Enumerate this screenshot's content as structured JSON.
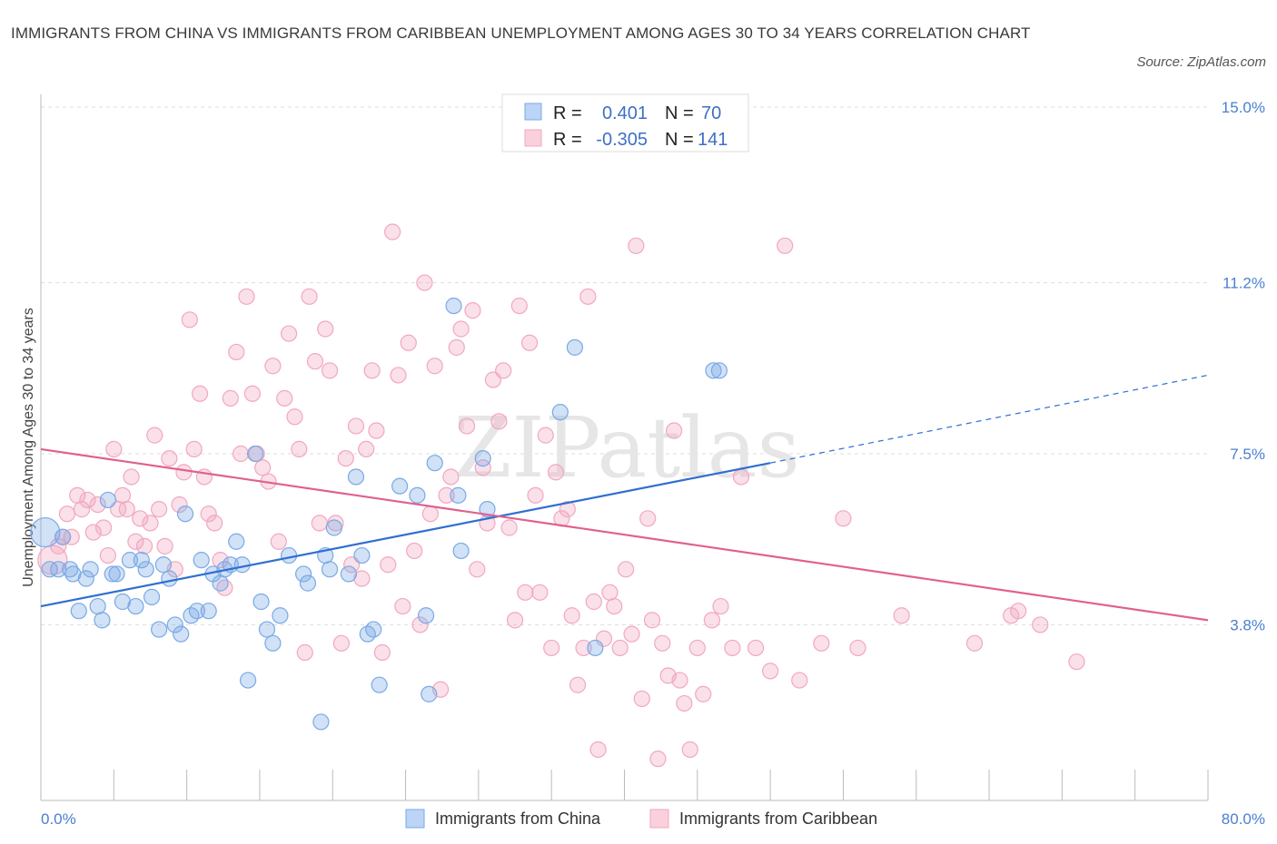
{
  "title": "IMMIGRANTS FROM CHINA VS IMMIGRANTS FROM CARIBBEAN UNEMPLOYMENT AMONG AGES 30 TO 34 YEARS CORRELATION CHART",
  "source": "Source: ZipAtlas.com",
  "watermark": "ZIPatlas",
  "colors": {
    "china": "#7aa9e6",
    "china_line": "#2f6fd0",
    "caribbean": "#f2a7c0",
    "caribbean_line": "#e0608f",
    "axis_text": "#4a7fd0"
  },
  "legend": {
    "r_label": "R =",
    "n_label": "N =",
    "china": {
      "r": "0.401",
      "n": "70"
    },
    "caribbean": {
      "r": "-0.305",
      "n": "141"
    }
  },
  "chart_data": {
    "type": "scatter",
    "title": "IMMIGRANTS FROM CHINA VS IMMIGRANTS FROM CARIBBEAN UNEMPLOYMENT AMONG AGES 30 TO 34 YEARS CORRELATION CHART",
    "xlabel": "",
    "ylabel": "Unemployment Among Ages 30 to 34 years",
    "xlim": [
      0,
      80
    ],
    "ylim": [
      0,
      15
    ],
    "x_tick_labels": [
      "0.0%",
      "80.0%"
    ],
    "y_tick_values": [
      3.8,
      7.5,
      11.2,
      15.0
    ],
    "y_tick_labels": [
      "3.8%",
      "7.5%",
      "11.2%",
      "15.0%"
    ],
    "series": [
      {
        "name": "Immigrants from China",
        "r": 0.401,
        "n": 70,
        "trend": {
          "x0": 0,
          "y0": 4.2,
          "x1": 50,
          "y1": 7.3,
          "dash_to_x": 80,
          "dash_to_y": 9.2
        },
        "points": [
          [
            0.3,
            5.8
          ],
          [
            0.6,
            5.0
          ],
          [
            1.2,
            5.0
          ],
          [
            1.5,
            5.7
          ],
          [
            2.0,
            5.0
          ],
          [
            2.2,
            4.9
          ],
          [
            2.6,
            4.1
          ],
          [
            3.1,
            4.8
          ],
          [
            3.4,
            5.0
          ],
          [
            3.9,
            4.2
          ],
          [
            4.2,
            3.9
          ],
          [
            4.6,
            6.5
          ],
          [
            4.9,
            4.9
          ],
          [
            5.2,
            4.9
          ],
          [
            5.6,
            4.3
          ],
          [
            6.1,
            5.2
          ],
          [
            6.5,
            4.2
          ],
          [
            6.9,
            5.2
          ],
          [
            7.2,
            5.0
          ],
          [
            7.6,
            4.4
          ],
          [
            8.1,
            3.7
          ],
          [
            8.4,
            5.1
          ],
          [
            8.8,
            4.8
          ],
          [
            9.2,
            3.8
          ],
          [
            9.6,
            3.6
          ],
          [
            9.9,
            6.2
          ],
          [
            10.3,
            4.0
          ],
          [
            10.7,
            4.1
          ],
          [
            11.0,
            5.2
          ],
          [
            11.5,
            4.1
          ],
          [
            11.8,
            4.9
          ],
          [
            12.3,
            4.7
          ],
          [
            12.6,
            5.0
          ],
          [
            13.0,
            5.1
          ],
          [
            13.4,
            5.6
          ],
          [
            13.8,
            5.1
          ],
          [
            14.2,
            2.6
          ],
          [
            14.7,
            7.5
          ],
          [
            15.1,
            4.3
          ],
          [
            15.5,
            3.7
          ],
          [
            15.9,
            3.4
          ],
          [
            16.4,
            4.0
          ],
          [
            17.0,
            5.3
          ],
          [
            18.0,
            4.9
          ],
          [
            18.3,
            4.7
          ],
          [
            19.2,
            1.7
          ],
          [
            19.5,
            5.3
          ],
          [
            19.8,
            5.0
          ],
          [
            20.1,
            5.9
          ],
          [
            21.1,
            4.9
          ],
          [
            21.6,
            7.0
          ],
          [
            22.0,
            5.3
          ],
          [
            22.4,
            3.6
          ],
          [
            22.8,
            3.7
          ],
          [
            23.2,
            2.5
          ],
          [
            24.6,
            6.8
          ],
          [
            25.8,
            6.6
          ],
          [
            26.4,
            4.0
          ],
          [
            26.6,
            2.3
          ],
          [
            27.0,
            7.3
          ],
          [
            28.3,
            10.7
          ],
          [
            28.6,
            6.6
          ],
          [
            28.8,
            5.4
          ],
          [
            30.3,
            7.4
          ],
          [
            30.6,
            6.3
          ],
          [
            35.6,
            8.4
          ],
          [
            36.6,
            9.8
          ],
          [
            38.0,
            3.3
          ],
          [
            46.1,
            9.3
          ],
          [
            46.5,
            9.3
          ]
        ]
      },
      {
        "name": "Immigrants from Caribbean",
        "r": -0.305,
        "n": 141,
        "trend": {
          "x0": 0,
          "y0": 7.6,
          "x1": 80,
          "y1": 3.9
        },
        "points": [
          [
            0.8,
            5.2
          ],
          [
            1.2,
            5.5
          ],
          [
            1.5,
            5.7
          ],
          [
            1.8,
            6.2
          ],
          [
            2.1,
            5.7
          ],
          [
            2.5,
            6.6
          ],
          [
            2.8,
            6.3
          ],
          [
            3.2,
            6.5
          ],
          [
            3.6,
            5.8
          ],
          [
            3.9,
            6.4
          ],
          [
            4.3,
            5.9
          ],
          [
            4.6,
            5.3
          ],
          [
            5.0,
            7.6
          ],
          [
            5.3,
            6.3
          ],
          [
            5.6,
            6.6
          ],
          [
            5.9,
            6.3
          ],
          [
            6.2,
            7.0
          ],
          [
            6.5,
            5.6
          ],
          [
            6.8,
            6.1
          ],
          [
            7.1,
            5.5
          ],
          [
            7.5,
            6.0
          ],
          [
            7.8,
            7.9
          ],
          [
            8.1,
            6.3
          ],
          [
            8.5,
            5.5
          ],
          [
            8.8,
            7.4
          ],
          [
            9.2,
            5.0
          ],
          [
            9.5,
            6.4
          ],
          [
            9.8,
            7.1
          ],
          [
            10.2,
            10.4
          ],
          [
            10.5,
            7.6
          ],
          [
            10.9,
            8.8
          ],
          [
            11.2,
            7.0
          ],
          [
            11.5,
            6.2
          ],
          [
            11.9,
            6.0
          ],
          [
            12.3,
            5.2
          ],
          [
            12.6,
            4.6
          ],
          [
            13.0,
            8.7
          ],
          [
            13.4,
            9.7
          ],
          [
            13.7,
            7.5
          ],
          [
            14.1,
            10.9
          ],
          [
            14.5,
            8.8
          ],
          [
            14.8,
            7.5
          ],
          [
            15.2,
            7.2
          ],
          [
            15.6,
            6.9
          ],
          [
            15.9,
            9.4
          ],
          [
            16.3,
            5.6
          ],
          [
            16.7,
            8.7
          ],
          [
            17.0,
            10.1
          ],
          [
            17.4,
            8.3
          ],
          [
            17.7,
            7.6
          ],
          [
            18.1,
            3.2
          ],
          [
            18.4,
            10.9
          ],
          [
            18.8,
            9.5
          ],
          [
            19.1,
            6.0
          ],
          [
            19.5,
            10.2
          ],
          [
            19.8,
            9.3
          ],
          [
            20.2,
            6.0
          ],
          [
            20.6,
            3.4
          ],
          [
            20.9,
            7.4
          ],
          [
            21.3,
            5.1
          ],
          [
            21.6,
            8.1
          ],
          [
            22.0,
            4.8
          ],
          [
            22.3,
            7.6
          ],
          [
            22.7,
            9.3
          ],
          [
            23.0,
            8.0
          ],
          [
            23.4,
            3.2
          ],
          [
            23.8,
            5.1
          ],
          [
            24.1,
            12.3
          ],
          [
            24.5,
            9.2
          ],
          [
            24.8,
            4.2
          ],
          [
            25.2,
            9.9
          ],
          [
            25.6,
            5.4
          ],
          [
            26.0,
            3.8
          ],
          [
            26.3,
            11.2
          ],
          [
            26.7,
            6.2
          ],
          [
            27.0,
            9.4
          ],
          [
            27.4,
            2.4
          ],
          [
            27.8,
            6.6
          ],
          [
            28.1,
            7.0
          ],
          [
            28.5,
            9.8
          ],
          [
            28.8,
            10.2
          ],
          [
            29.2,
            8.1
          ],
          [
            29.6,
            10.6
          ],
          [
            29.9,
            5.0
          ],
          [
            30.3,
            7.2
          ],
          [
            30.6,
            6.0
          ],
          [
            31.0,
            9.1
          ],
          [
            31.4,
            8.2
          ],
          [
            31.7,
            9.3
          ],
          [
            32.1,
            5.9
          ],
          [
            32.5,
            3.9
          ],
          [
            32.8,
            10.7
          ],
          [
            33.2,
            4.5
          ],
          [
            33.5,
            9.9
          ],
          [
            33.9,
            6.6
          ],
          [
            34.2,
            4.5
          ],
          [
            34.6,
            7.9
          ],
          [
            35.0,
            3.3
          ],
          [
            35.3,
            7.1
          ],
          [
            35.7,
            6.1
          ],
          [
            36.1,
            6.3
          ],
          [
            36.4,
            4.0
          ],
          [
            36.8,
            2.5
          ],
          [
            37.2,
            3.3
          ],
          [
            37.5,
            10.9
          ],
          [
            37.9,
            4.3
          ],
          [
            38.2,
            1.1
          ],
          [
            38.6,
            3.5
          ],
          [
            39.0,
            4.5
          ],
          [
            39.3,
            4.2
          ],
          [
            39.7,
            3.3
          ],
          [
            40.1,
            5.0
          ],
          [
            40.5,
            3.6
          ],
          [
            40.8,
            12.0
          ],
          [
            41.2,
            2.2
          ],
          [
            41.6,
            6.1
          ],
          [
            41.9,
            3.9
          ],
          [
            42.3,
            0.9
          ],
          [
            42.6,
            3.4
          ],
          [
            43.0,
            2.7
          ],
          [
            43.4,
            8.0
          ],
          [
            43.8,
            2.6
          ],
          [
            44.1,
            2.1
          ],
          [
            44.5,
            1.1
          ],
          [
            45.0,
            3.3
          ],
          [
            45.4,
            2.3
          ],
          [
            46.0,
            3.9
          ],
          [
            46.6,
            4.2
          ],
          [
            47.4,
            3.3
          ],
          [
            48.0,
            7.0
          ],
          [
            49.0,
            3.3
          ],
          [
            50.0,
            2.8
          ],
          [
            51.0,
            12.0
          ],
          [
            52.0,
            2.6
          ],
          [
            53.5,
            3.4
          ],
          [
            55.0,
            6.1
          ],
          [
            56.0,
            3.3
          ],
          [
            59.0,
            4.0
          ],
          [
            64.0,
            3.4
          ],
          [
            66.5,
            4.0
          ],
          [
            67.0,
            4.1
          ],
          [
            68.5,
            3.8
          ],
          [
            71.0,
            3.0
          ]
        ]
      }
    ]
  },
  "bottom_legend": {
    "china": "Immigrants from China",
    "caribbean": "Immigrants from Caribbean"
  }
}
